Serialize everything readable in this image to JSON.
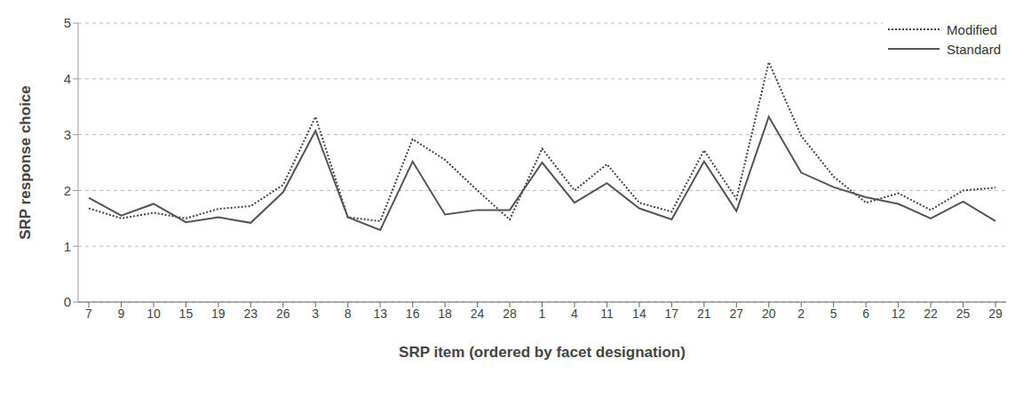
{
  "chart_data": {
    "type": "line",
    "x_label": "SRP item (ordered by facet designation)",
    "y_label": "SRP response choice",
    "categories": [
      "7",
      "9",
      "10",
      "15",
      "19",
      "23",
      "26",
      "3",
      "8",
      "13",
      "16",
      "18",
      "24",
      "28",
      "1",
      "4",
      "11",
      "14",
      "17",
      "21",
      "27",
      "20",
      "2",
      "5",
      "6",
      "12",
      "22",
      "25",
      "29"
    ],
    "series": [
      {
        "name": "Modified",
        "color": "#444444",
        "line_style": "dotted",
        "values": [
          1.68,
          1.5,
          1.6,
          1.5,
          1.67,
          1.72,
          2.1,
          3.32,
          1.52,
          1.45,
          2.92,
          2.55,
          2.0,
          1.48,
          2.75,
          2.0,
          2.47,
          1.78,
          1.62,
          2.72,
          1.85,
          4.3,
          2.98,
          2.25,
          1.78,
          1.95,
          1.65,
          2.0,
          2.05
        ]
      },
      {
        "name": "Standard",
        "color": "#555555",
        "line_style": "solid",
        "values": [
          1.87,
          1.55,
          1.76,
          1.43,
          1.52,
          1.42,
          1.97,
          3.07,
          1.52,
          1.29,
          2.52,
          1.57,
          1.65,
          1.65,
          2.5,
          1.78,
          2.13,
          1.68,
          1.48,
          2.52,
          1.63,
          3.32,
          2.32,
          2.06,
          1.88,
          1.76,
          1.5,
          1.8,
          1.45
        ]
      }
    ],
    "ylim": [
      0,
      5
    ],
    "yticks": [
      0,
      1,
      2,
      3,
      4,
      5
    ],
    "grid": true,
    "legend": "upper right"
  }
}
